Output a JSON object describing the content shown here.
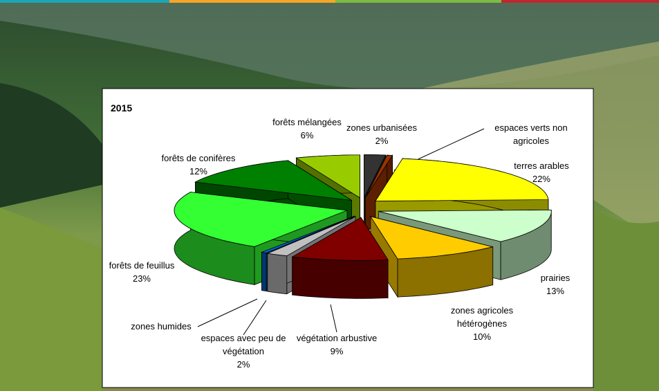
{
  "chart_data": {
    "type": "pie3d",
    "title": "2015",
    "categories": [
      "zones urbanisées",
      "espaces verts non agricoles",
      "terres arables",
      "prairies",
      "zones agricoles hétérogènes",
      "végétation arbustive",
      "espaces avec peu de végétation",
      "zones humides",
      "forêts de feuillus",
      "forêts de conifères",
      "forêts mélangées"
    ],
    "values": [
      2,
      0.5,
      22,
      13,
      10,
      9,
      2,
      0.5,
      23,
      12,
      6
    ],
    "value_labels": [
      "2%",
      null,
      "22%",
      "13%",
      "10%",
      "9%",
      "2%",
      null,
      "23%",
      "12%",
      "6%"
    ],
    "colors": [
      "#333333",
      "#993300",
      "#ffff00",
      "#ccffcc",
      "#ffcc00",
      "#800000",
      "#c0c0c0",
      "#0066cc",
      "#33ff33",
      "#008000",
      "#99cc00"
    ]
  }
}
